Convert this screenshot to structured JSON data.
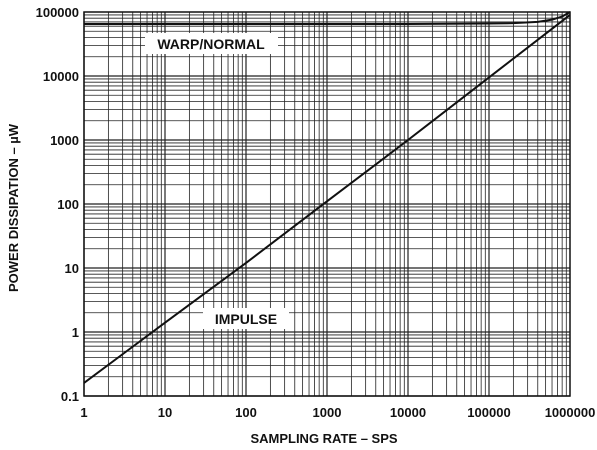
{
  "chart_data": {
    "type": "line",
    "title": "",
    "x_scale": "log",
    "y_scale": "log",
    "xlabel": "SAMPLING RATE – SPS",
    "ylabel": "POWER DISSIPATION – µW",
    "xlim": [
      1,
      1000000
    ],
    "ylim": [
      0.1,
      100000
    ],
    "x_ticks": [
      "1",
      "10",
      "100",
      "1000",
      "10000",
      "100000",
      "1000000"
    ],
    "y_ticks": [
      "0.1",
      "1",
      "10",
      "100",
      "1000",
      "10000",
      "100000"
    ],
    "grid": true,
    "series": [
      {
        "name": "WARP/NORMAL",
        "x": [
          1,
          10,
          100,
          1000,
          10000,
          100000,
          200000,
          400000,
          600000,
          800000,
          1000000
        ],
        "y": [
          65000,
          65000,
          65000,
          65000,
          65000,
          66000,
          67000,
          70000,
          76000,
          85000,
          100000
        ]
      },
      {
        "name": "IMPULSE",
        "x": [
          1,
          10,
          100,
          1000,
          10000,
          100000,
          1000000
        ],
        "y": [
          0.16,
          1.4,
          12,
          110,
          1000,
          9500,
          90000
        ]
      }
    ]
  },
  "colors": {
    "line": "#111111",
    "grid": "#222222",
    "background": "#ffffff"
  }
}
